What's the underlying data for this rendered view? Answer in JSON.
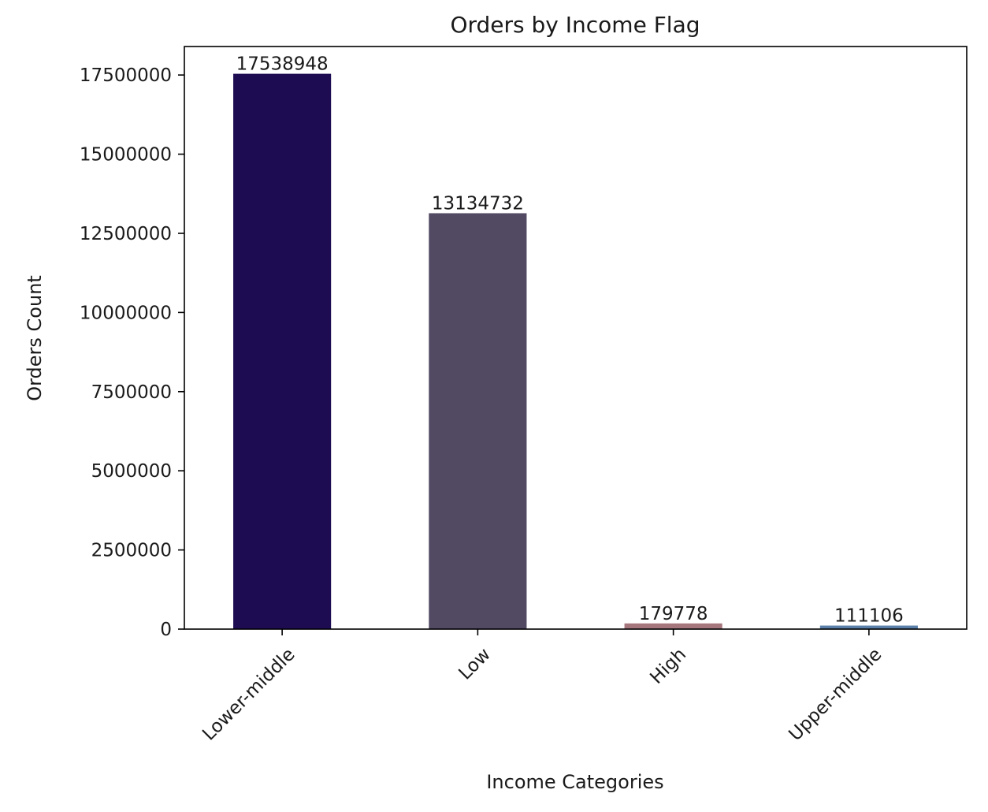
{
  "chart_data": {
    "type": "bar",
    "title": "Orders by Income Flag",
    "xlabel": "Income Categories",
    "ylabel": "Orders Count",
    "categories": [
      "Lower-middle",
      "Low",
      "High",
      "Upper-middle"
    ],
    "values": [
      17538948,
      13134732,
      179778,
      111106
    ],
    "data_labels": [
      "17538948",
      "13134732",
      "179778",
      "111106"
    ],
    "colors": [
      "#1e0c52",
      "#524a63",
      "#a6767d",
      "#5a7fa8"
    ],
    "ylim": [
      0,
      18400000
    ],
    "yticks": [
      0,
      2500000,
      5000000,
      7500000,
      10000000,
      12500000,
      15000000,
      17500000
    ],
    "ytick_labels": [
      "0",
      "2500000",
      "5000000",
      "7500000",
      "10000000",
      "12500000",
      "15000000",
      "17500000"
    ],
    "xtick_rotation": 45,
    "grid": false,
    "legend": "none"
  }
}
